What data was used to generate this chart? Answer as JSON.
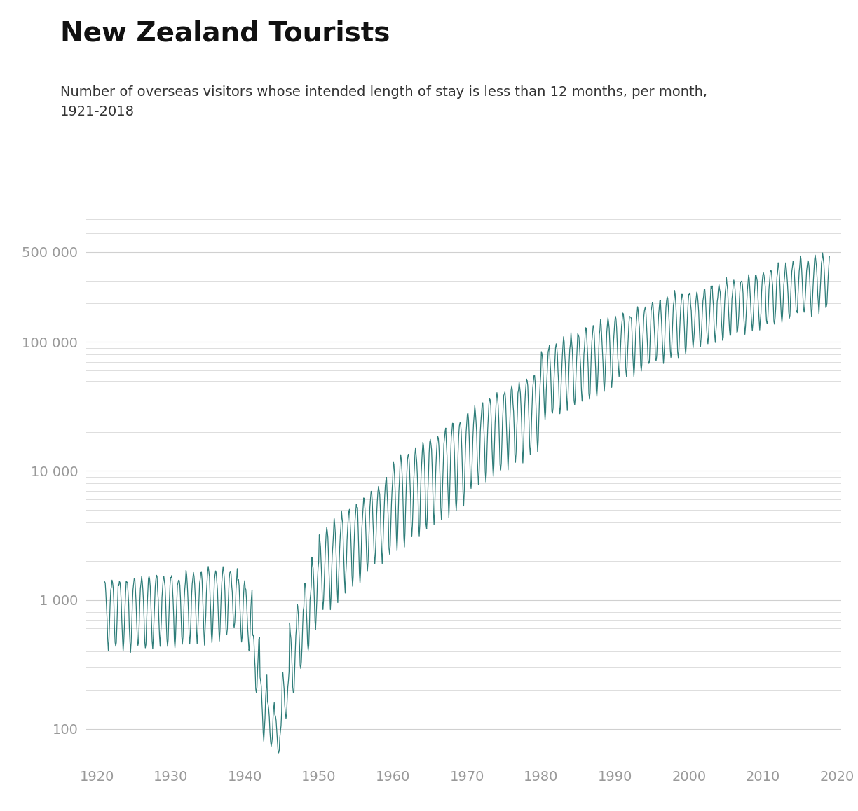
{
  "title": "New Zealand Tourists",
  "subtitle": "Number of overseas visitors whose intended length of stay is less than 12 months, per month,\n1921-2018",
  "title_fontsize": 28,
  "subtitle_fontsize": 14,
  "line_color": "#2e7d79",
  "line_width": 0.9,
  "background_color": "#ffffff",
  "grid_color": "#d0d0d0",
  "tick_color": "#999999",
  "ylim_low": 55,
  "ylim_high": 620000,
  "xlim_low": 1918.5,
  "xlim_high": 2020.5,
  "ytick_labels": [
    "100",
    "1 000",
    "10 000",
    "100 000",
    "500 000"
  ],
  "ytick_values": [
    100,
    1000,
    10000,
    100000,
    500000
  ],
  "xtick_values": [
    1920,
    1930,
    1940,
    1950,
    1960,
    1970,
    1980,
    1990,
    2000,
    2010,
    2020
  ]
}
